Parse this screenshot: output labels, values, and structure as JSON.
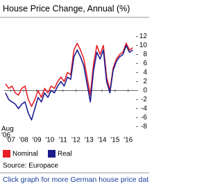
{
  "chart_data": {
    "type": "line",
    "title": "House Price Change, Annual (%)",
    "source": "Source: Europace",
    "link": "Click graph for more German house price data",
    "start_label": [
      "Aug",
      "'06"
    ],
    "x": [
      2006.6,
      2006.85,
      2007.1,
      2007.35,
      2007.6,
      2007.85,
      2008.1,
      2008.35,
      2008.6,
      2008.85,
      2009.1,
      2009.35,
      2009.6,
      2009.85,
      2010.1,
      2010.35,
      2010.6,
      2010.85,
      2011.1,
      2011.35,
      2011.6,
      2011.85,
      2012.1,
      2012.35,
      2012.6,
      2012.85,
      2013.1,
      2013.35,
      2013.6,
      2013.85,
      2014.1,
      2014.35,
      2014.6,
      2014.85,
      2015.1,
      2015.35,
      2015.6,
      2015.85,
      2016.1,
      2016.35
    ],
    "xlim": [
      2006.5,
      2016.6
    ],
    "xticks": [
      {
        "value": 2007,
        "label": "'07"
      },
      {
        "value": 2008,
        "label": "'08"
      },
      {
        "value": 2009,
        "label": "'09"
      },
      {
        "value": 2010,
        "label": "'10"
      },
      {
        "value": 2011,
        "label": "'11"
      },
      {
        "value": 2012,
        "label": "'12"
      },
      {
        "value": 2013,
        "label": "'13"
      },
      {
        "value": 2014,
        "label": "'14"
      },
      {
        "value": 2015,
        "label": "'15"
      },
      {
        "value": 2016,
        "label": "'16"
      }
    ],
    "ylim": [
      -9,
      13
    ],
    "yticks": [
      12,
      10,
      8,
      6,
      4,
      2,
      0,
      -2,
      -4,
      -6,
      -8
    ],
    "series": [
      {
        "name": "Nominal",
        "color": "#e8202a",
        "values": [
          1.5,
          0.5,
          1,
          -0.5,
          -1,
          0.5,
          1,
          -2,
          -3.5,
          -2,
          0,
          -1.5,
          0.5,
          -0.5,
          1,
          0.5,
          2,
          3,
          2,
          4,
          3.5,
          9,
          10.5,
          9,
          7,
          3,
          -1,
          6,
          10,
          8,
          10,
          3,
          0,
          5,
          7,
          8,
          8.5,
          10.5,
          9,
          9.5
        ]
      },
      {
        "name": "Real",
        "color": "#1c1c8e",
        "values": [
          -0.5,
          -2,
          -2.5,
          -3,
          -4,
          -3,
          -2.5,
          -5,
          -6.5,
          -4,
          -1.5,
          -2.5,
          -0.5,
          -1.5,
          0,
          -0.5,
          1,
          2,
          1,
          3,
          2.5,
          7.5,
          9,
          7.5,
          5.5,
          1.5,
          -2.5,
          4.5,
          8.5,
          7,
          9,
          2,
          -0.5,
          4.5,
          6.5,
          7.5,
          8,
          10,
          8.5,
          9
        ]
      }
    ]
  }
}
